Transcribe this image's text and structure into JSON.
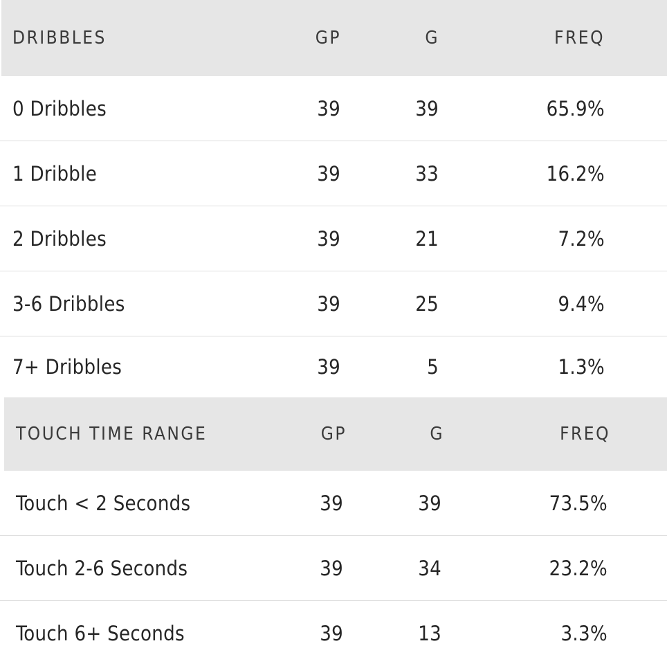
{
  "dribbles_table": {
    "headers": {
      "label": "DRIBBLES",
      "gp": "GP",
      "g": "G",
      "freq": "FREQ"
    },
    "rows": [
      {
        "label": "0 Dribbles",
        "gp": "39",
        "g": "39",
        "freq": "65.9%"
      },
      {
        "label": "1 Dribble",
        "gp": "39",
        "g": "33",
        "freq": "16.2%"
      },
      {
        "label": "2 Dribbles",
        "gp": "39",
        "g": "21",
        "freq": "7.2%"
      },
      {
        "label": "3-6 Dribbles",
        "gp": "39",
        "g": "25",
        "freq": "9.4%"
      },
      {
        "label": "7+ Dribbles",
        "gp": "39",
        "g": "5",
        "freq": "1.3%"
      }
    ]
  },
  "touch_table": {
    "headers": {
      "label": "TOUCH TIME RANGE",
      "gp": "GP",
      "g": "G",
      "freq": "FREQ"
    },
    "rows": [
      {
        "label": "Touch < 2 Seconds",
        "gp": "39",
        "g": "39",
        "freq": "73.5%"
      },
      {
        "label": "Touch 2-6 Seconds",
        "gp": "39",
        "g": "34",
        "freq": "23.2%"
      },
      {
        "label": "Touch 6+ Seconds",
        "gp": "39",
        "g": "13",
        "freq": "3.3%"
      }
    ]
  },
  "colors": {
    "header_background": "#e6e6e6",
    "row_background": "#ffffff",
    "row_divider": "#dfdfdf",
    "text": "#262626"
  }
}
